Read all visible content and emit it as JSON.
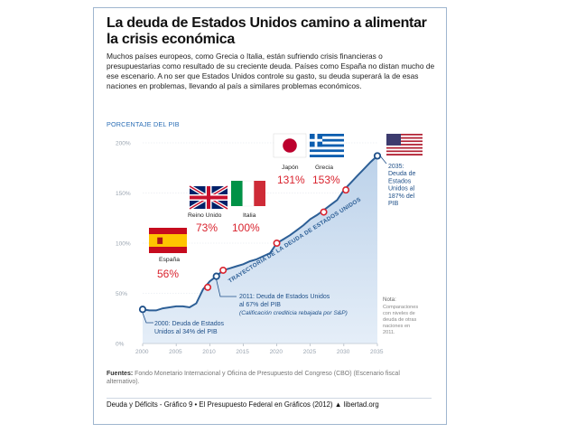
{
  "title": "La deuda de Estados Unidos camino a alimentar la crisis económica",
  "intro": "Muchos países europeos, como Grecia o Italia, están sufriendo crisis financieras o presupuestarias como resultado de su creciente deuda. Países como España no distan mucho de ese escenario. A no ser que Estados Unidos controle su gasto, su deuda superará la de esas naciones en problemas, llevando al país a similares problemas económicos.",
  "subtitle": "PORCENTAJE DEL PIB",
  "chart_data": {
    "type": "area",
    "x": [
      2000,
      2001,
      2002,
      2003,
      2004,
      2005,
      2006,
      2007,
      2008,
      2009,
      2010,
      2011,
      2012,
      2013,
      2014,
      2015,
      2016,
      2017,
      2018,
      2019,
      2020,
      2021,
      2022,
      2023,
      2024,
      2025,
      2026,
      2027,
      2028,
      2029,
      2030,
      2031,
      2032,
      2033,
      2034,
      2035
    ],
    "values": [
      34,
      33,
      33,
      35,
      36,
      37,
      37,
      36,
      40,
      54,
      62,
      67,
      73,
      75,
      77,
      79,
      82,
      84,
      87,
      90,
      100,
      104,
      108,
      113,
      118,
      124,
      128,
      133,
      138,
      143,
      153,
      160,
      167,
      174,
      181,
      187
    ],
    "xlim": [
      2000,
      2035
    ],
    "ylim": [
      0,
      200
    ],
    "xticks": [
      "2000",
      "2005",
      "2010",
      "2015",
      "2020",
      "2025",
      "2030",
      "2035"
    ],
    "yticks": [
      "0%",
      "50%",
      "100%",
      "150%",
      "200%"
    ],
    "curve_label": "TRAYECTORIA DE LA DEUDA DE ESTADOS UNIDOS",
    "countries": [
      {
        "name": "España",
        "value": "56%",
        "year": 2009.7,
        "debt": 56
      },
      {
        "name": "Reino Unido",
        "value": "73%",
        "year": 2012,
        "debt": 73
      },
      {
        "name": "Italia",
        "value": "100%",
        "year": 2020,
        "debt": 100
      },
      {
        "name": "Japón",
        "value": "131%",
        "year": 2027,
        "debt": 131
      },
      {
        "name": "Grecia",
        "value": "153%",
        "year": 2030.3,
        "debt": 153
      }
    ],
    "annotations": {
      "start": {
        "line1": "2000: Deuda de Estados",
        "line2": "Unidos al 34% del PIB",
        "year": 2000,
        "debt": 34
      },
      "mid": {
        "line1": "2011: Deuda de Estados Unidos",
        "line2": "al 67% del PIB",
        "line3": "(Calificación crediticia rebajada por S&P)",
        "year": 2011,
        "debt": 67
      },
      "end": {
        "line1": "2035:",
        "line2": "Deuda de",
        "line3": "Estados",
        "line4": "Unidos al",
        "line5": "187% del",
        "line6": "PIB",
        "year": 2035,
        "debt": 187
      }
    },
    "note": {
      "title": "Nota:",
      "lines": [
        "Comparaciones",
        "con niveles de",
        "deuda de otras",
        "naciones en",
        "2011."
      ]
    }
  },
  "sources": {
    "label": "Fuentes:",
    "text": "Fondo Monetario Internacional y Oficina de Presupuesto del Congreso (CBO) (Escenario fiscal alternativo)."
  },
  "footer": {
    "text": "Deuda y Déficits - Gráfico 9 • El Presupuesto Federal en Gráficos (2012)",
    "brand": "libertad.org"
  },
  "colors": {
    "line": "#2d5f96",
    "area": "#c9d9ec",
    "red": "#d9232e",
    "marker_blue": "#1e4f88",
    "tick": "#9aa4b0"
  }
}
